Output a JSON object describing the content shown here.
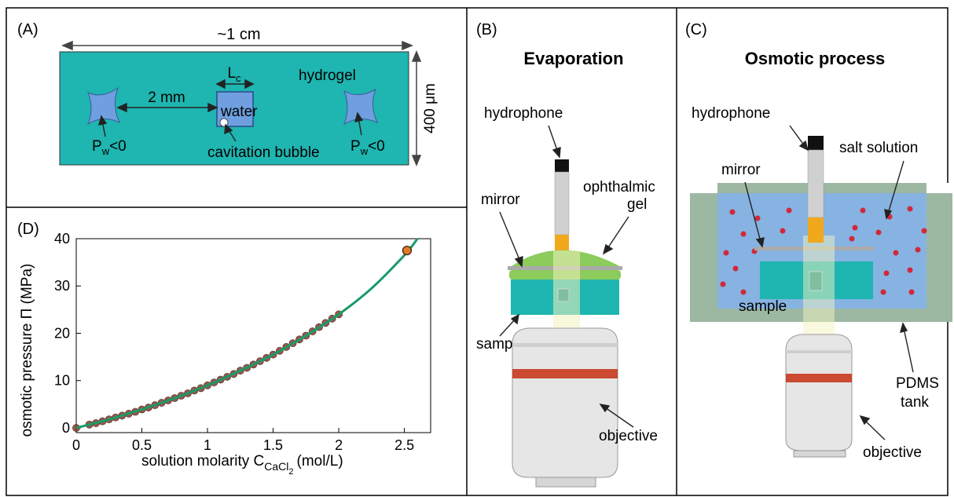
{
  "panels": {
    "a": {
      "label": "(A)",
      "width_label": "~1 cm",
      "height_label": "400 μm",
      "gap_label": "2 mm",
      "lc_main": "L",
      "lc_sub": "c",
      "hydrogel_label": "hydrogel",
      "water_label": "water",
      "bubble_label": "cavitation bubble",
      "pw_main": "P",
      "pw_sub": "w",
      "pw_rest": "<0",
      "colors": {
        "gel": "#1fb5b0",
        "water": "#6f9fde"
      }
    },
    "b": {
      "label": "(B)",
      "title": "Evaporation",
      "hydrophone": "hydrophone",
      "mirror": "mirror",
      "gel_line1": "ophthalmic",
      "gel_line2": "gel",
      "sample": "sample",
      "objective": "objective"
    },
    "c": {
      "label": "(C)",
      "title": "Osmotic process",
      "hydrophone": "hydrophone",
      "salt": "salt solution",
      "mirror": "mirror",
      "sample": "sample",
      "pdms1": "PDMS",
      "pdms2": "tank",
      "objective": "objective"
    },
    "d": {
      "label": "(D)",
      "ylabel": "osmotic pressure Π (MPa)",
      "xlabel_main": "solution molarity C",
      "xlabel_sub": "CaCl",
      "xlabel_subsub": "2",
      "xlabel_unit": "(mol/L)"
    }
  },
  "chart_data": {
    "type": "scatter",
    "xlabel": "solution molarity C_CaCl2 (mol/L)",
    "ylabel": "osmotic pressure Π (MPa)",
    "xlim": [
      0,
      2.7
    ],
    "ylim": [
      -1,
      40
    ],
    "xticks": [
      "0",
      "0.5",
      "1",
      "1.5",
      "2",
      "2.5"
    ],
    "yticks": [
      "0",
      "10",
      "20",
      "30",
      "40"
    ],
    "series": [
      {
        "kind": "points",
        "color": "#8a3a2a",
        "x": [
          0,
          0.1,
          0.15,
          0.2,
          0.25,
          0.3,
          0.35,
          0.4,
          0.45,
          0.5,
          0.55,
          0.6,
          0.65,
          0.7,
          0.75,
          0.8,
          0.85,
          0.9,
          0.95,
          1.0,
          1.05,
          1.1,
          1.15,
          1.2,
          1.25,
          1.3,
          1.35,
          1.4,
          1.45,
          1.5,
          1.55,
          1.6,
          1.65,
          1.7,
          1.75,
          1.8,
          1.85,
          1.9,
          1.95,
          2.0
        ],
        "y": [
          0,
          0.7,
          1.0,
          1.4,
          1.8,
          2.2,
          2.6,
          3.0,
          3.4,
          3.9,
          4.3,
          4.8,
          5.3,
          5.8,
          6.3,
          6.8,
          7.3,
          7.9,
          8.4,
          9.0,
          9.6,
          10.2,
          10.8,
          11.4,
          12.1,
          12.7,
          13.4,
          14.1,
          14.8,
          15.5,
          16.3,
          17.1,
          17.9,
          18.7,
          19.5,
          20.4,
          21.3,
          22.2,
          23.1,
          24.0
        ]
      },
      {
        "kind": "highlight",
        "color": "#e07a28",
        "x": [
          2.52
        ],
        "y": [
          37.5
        ]
      },
      {
        "kind": "fit",
        "color": "#1a9a6a",
        "x": [
          0,
          0.25,
          0.5,
          0.75,
          1.0,
          1.25,
          1.5,
          1.75,
          2.0,
          2.25,
          2.5,
          2.6
        ],
        "y": [
          0,
          1.8,
          3.9,
          6.3,
          9.0,
          12.1,
          15.5,
          19.5,
          24.0,
          29.5,
          36.5,
          40
        ]
      }
    ]
  }
}
